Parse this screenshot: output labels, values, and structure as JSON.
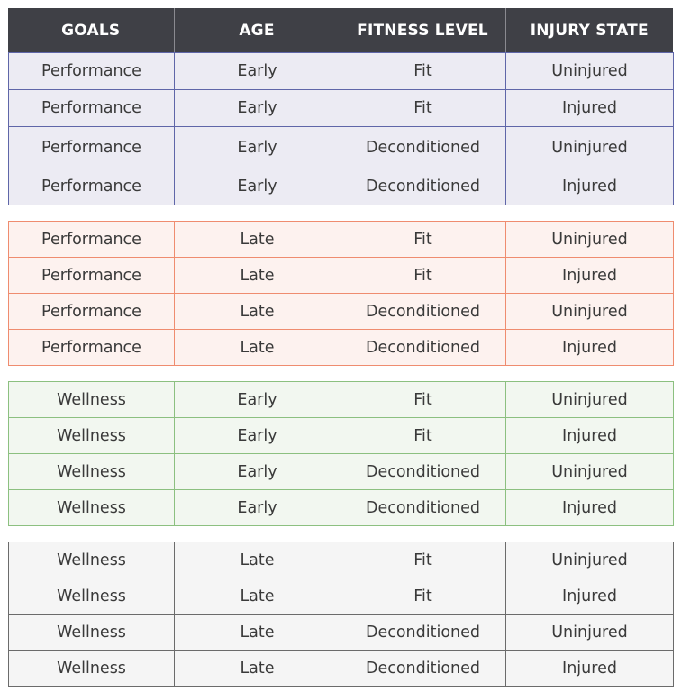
{
  "headers": [
    "GOALS",
    "AGE",
    "FITNESS LEVEL",
    "INJURY STATE"
  ],
  "colors": {
    "header_bg": "#3f4046",
    "group_1_border": "#5f66a8",
    "group_1_fill": "#ecebf3",
    "group_2_border": "#ef8c6f",
    "group_2_fill": "#fdf2ef",
    "group_3_border": "#8cc080",
    "group_3_fill": "#f2f7f0",
    "group_4_border": "#6b6b6b",
    "group_4_fill": "#f5f5f5"
  },
  "groups": [
    {
      "rows": [
        [
          "Performance",
          "Early",
          "Fit",
          "Uninjured"
        ],
        [
          "Performance",
          "Early",
          "Fit",
          "Injured"
        ],
        [
          "Performance",
          "Early",
          "Deconditioned",
          "Uninjured"
        ],
        [
          "Performance",
          "Early",
          "Deconditioned",
          "Injured"
        ]
      ]
    },
    {
      "rows": [
        [
          "Performance",
          "Late",
          "Fit",
          "Uninjured"
        ],
        [
          "Performance",
          "Late",
          "Fit",
          "Injured"
        ],
        [
          "Performance",
          "Late",
          "Deconditioned",
          "Uninjured"
        ],
        [
          "Performance",
          "Late",
          "Deconditioned",
          "Injured"
        ]
      ]
    },
    {
      "rows": [
        [
          "Wellness",
          "Early",
          "Fit",
          "Uninjured"
        ],
        [
          "Wellness",
          "Early",
          "Fit",
          "Injured"
        ],
        [
          "Wellness",
          "Early",
          "Deconditioned",
          "Uninjured"
        ],
        [
          "Wellness",
          "Early",
          "Deconditioned",
          "Injured"
        ]
      ]
    },
    {
      "rows": [
        [
          "Wellness",
          "Late",
          "Fit",
          "Uninjured"
        ],
        [
          "Wellness",
          "Late",
          "Fit",
          "Injured"
        ],
        [
          "Wellness",
          "Late",
          "Deconditioned",
          "Uninjured"
        ],
        [
          "Wellness",
          "Late",
          "Deconditioned",
          "Injured"
        ]
      ]
    }
  ]
}
